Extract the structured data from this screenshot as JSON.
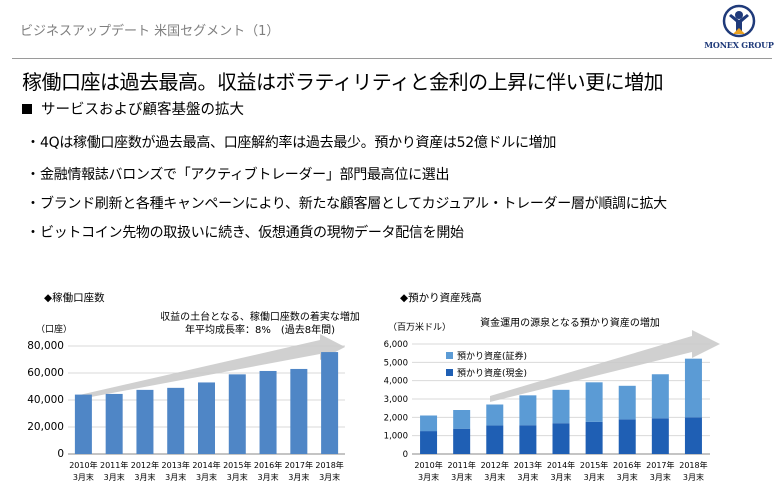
{
  "header": {
    "section_label": "ビジネスアップデート 米国セグメント（1）",
    "logo_text": "MONEX GROUP"
  },
  "headline": "稼働口座は過去最高。収益はボラティリティと金利の上昇に伴い更に増加",
  "sub_heading": "サービスおよび顧客基盤の拡大",
  "bullets": [
    "4Qは稼働口座数が過去最高、口座解約率は過去最少。預かり資産は52億ドルに増加",
    "金融情報誌バロンズで「アクティブトレーダー」部門最高位に選出",
    "ブランド刷新と各種キャンペーンにより、新たな顧客層としてカジュアル・トレーダー層が順調に拡大",
    "ビットコイン先物の取扱いに続き、仮想通貨の現物データ配信を開始"
  ],
  "bullet_marker": "・",
  "chart_data": [
    {
      "type": "bar",
      "title": "◆稼働口座数",
      "unit_label": "（口座）",
      "note_line1": "収益の土台となる、稼働口座数の着実な増加",
      "note_line2": "年平均成長率：8%　(過去8年間)",
      "categories": [
        "2010年",
        "2011年",
        "2012年",
        "2013年",
        "2014年",
        "2015年",
        "2016年",
        "2017年",
        "2018年"
      ],
      "category_suffix": "3月末",
      "values": [
        44000,
        44500,
        47500,
        49000,
        53000,
        59000,
        61500,
        63000,
        75500
      ],
      "ylim": [
        0,
        80000
      ],
      "yticks": [
        "0",
        "20,000",
        "40,000",
        "60,000",
        "80,000"
      ],
      "color": "#4f86c6",
      "grid": true
    },
    {
      "type": "bar",
      "stacked": true,
      "title": "◆預かり資産残高",
      "unit_label": "（百万米ドル）",
      "note_line1": "資金運用の源泉となる預かり資産の増加",
      "categories": [
        "2010年",
        "2011年",
        "2012年",
        "2013年",
        "2014年",
        "2015年",
        "2016年",
        "2017年",
        "2018年"
      ],
      "category_suffix": "3月末",
      "series": [
        {
          "name": "預かり資産(現金)",
          "color": "#1f5fb4",
          "values": [
            1250,
            1380,
            1560,
            1570,
            1680,
            1750,
            1890,
            1950,
            2000
          ]
        },
        {
          "name": "預かり資産(証券)",
          "color": "#5b9bd5",
          "values": [
            850,
            1020,
            1140,
            1630,
            1820,
            2160,
            1830,
            2400,
            3200
          ]
        }
      ],
      "legend_order": [
        "預かり資産(証券)",
        "預かり資産(現金)"
      ],
      "ylim": [
        0,
        6000
      ],
      "yticks": [
        "0",
        "1,000",
        "2,000",
        "3,000",
        "4,000",
        "5,000",
        "6,000"
      ],
      "grid": true
    }
  ]
}
